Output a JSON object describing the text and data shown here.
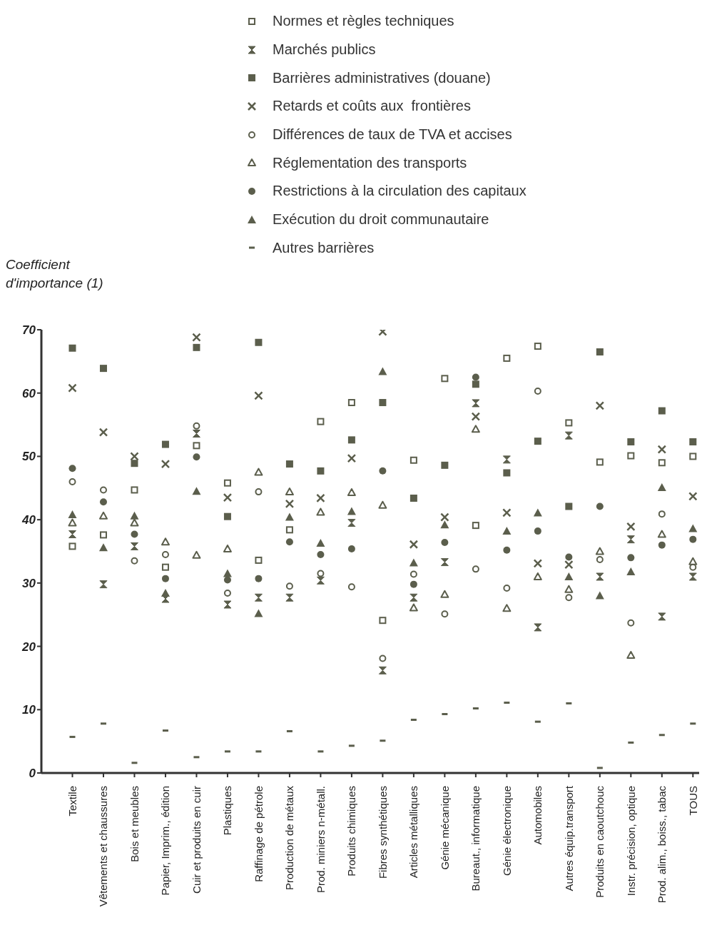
{
  "chart_data": {
    "type": "scatter",
    "ylabel": "Coefficient d'importance (1)",
    "categories": [
      "Textile",
      "Vêtements et chaussures",
      "Bois et meubles",
      "Papier, Imprim., édition",
      "Cuir et produits en cuir",
      "Plastiques",
      "Raffinage de pétrole",
      "Production de métaux",
      "Prod. miniers n-métall.",
      "Produits chimiques",
      "Fibres synthétiques",
      "Articles métalliques",
      "Génie mécanique",
      "Bureaut., informatique",
      "Génie électronique",
      "Automobiles",
      "Autres équip.transport",
      "Produits en caoutchouc",
      "Instr. précision, optique",
      "Prod. alim., boiss., tabac",
      "TOUS"
    ],
    "ylim": [
      0,
      70
    ],
    "yticks": [
      0,
      10,
      20,
      30,
      40,
      50,
      60,
      70
    ],
    "grid": false,
    "legend": "top",
    "series": [
      {
        "name": "Normes et règles techniques",
        "color": "#5b5e4c",
        "marker": "square-open",
        "values": [
          35.8,
          37.6,
          44.7,
          32.5,
          51.7,
          45.8,
          33.6,
          38.4,
          55.5,
          58.5,
          24.1,
          49.4,
          62.3,
          39.1,
          65.5,
          67.4,
          55.3,
          49.1,
          50.1,
          49.0,
          50.0
        ]
      },
      {
        "name": "Marchés publics",
        "color": "#5b5e4c",
        "marker": "diamond",
        "values": [
          37.7,
          29.8,
          35.8,
          27.5,
          53.6,
          26.6,
          27.7,
          27.7,
          30.4,
          39.5,
          16.2,
          27.7,
          33.3,
          58.4,
          49.5,
          23.0,
          53.3,
          31.0,
          36.9,
          24.7,
          31.0
        ]
      },
      {
        "name": "Barrières administratives (douane)",
        "color": "#5b5e4c",
        "marker": "square",
        "values": [
          67.1,
          63.9,
          48.9,
          51.9,
          67.2,
          40.5,
          68.0,
          48.8,
          47.7,
          52.6,
          58.5,
          43.4,
          48.6,
          61.4,
          47.4,
          52.4,
          42.1,
          66.5,
          52.3,
          57.2,
          52.3
        ]
      },
      {
        "name": "Retards et coûts aux  frontières",
        "color": "#5b5e4c",
        "marker": "cross",
        "values": [
          60.8,
          53.8,
          50.0,
          48.8,
          68.8,
          43.5,
          59.6,
          42.5,
          43.4,
          49.7,
          69.7,
          36.1,
          40.4,
          56.3,
          41.1,
          33.1,
          32.9,
          58.0,
          38.9,
          51.1,
          43.7
        ]
      },
      {
        "name": "Différences de taux de TVA et accises",
        "color": "#5b5e4c",
        "marker": "circle-open",
        "values": [
          46.0,
          44.7,
          33.5,
          34.5,
          54.8,
          28.4,
          44.4,
          29.5,
          31.5,
          29.4,
          18.1,
          31.4,
          25.1,
          32.2,
          29.2,
          60.3,
          27.7,
          33.7,
          23.7,
          40.9,
          32.5
        ]
      },
      {
        "name": "Réglementation des transports",
        "color": "#5b5e4c",
        "marker": "triangle-open",
        "values": [
          39.5,
          40.6,
          39.5,
          36.5,
          34.4,
          35.4,
          47.5,
          44.4,
          41.2,
          44.3,
          42.3,
          26.1,
          28.2,
          54.3,
          26.0,
          31.0,
          29.0,
          35.0,
          18.6,
          37.7,
          33.4
        ]
      },
      {
        "name": "Restrictions à la circulation des capitaux",
        "color": "#5b5e4c",
        "marker": "circle",
        "values": [
          48.1,
          42.8,
          37.7,
          30.7,
          49.9,
          30.5,
          30.7,
          36.5,
          34.5,
          35.4,
          47.7,
          29.8,
          36.4,
          62.5,
          35.2,
          38.2,
          34.1,
          42.1,
          34.0,
          36.0,
          36.9
        ]
      },
      {
        "name": "Exécution du droit communautaire",
        "color": "#5b5e4c",
        "marker": "triangle",
        "values": [
          40.8,
          35.6,
          40.6,
          28.4,
          44.5,
          31.5,
          25.2,
          40.4,
          36.3,
          41.3,
          63.4,
          33.2,
          39.2,
          null,
          38.2,
          41.1,
          31.0,
          28.0,
          31.8,
          45.1,
          38.6
        ]
      },
      {
        "name": "Autres barrières",
        "color": "#5b5e4c",
        "values": [
          5.7,
          7.8,
          1.6,
          6.7,
          2.5,
          3.4,
          3.4,
          6.6,
          3.4,
          4.3,
          5.1,
          8.4,
          9.3,
          10.2,
          11.1,
          8.1,
          11.0,
          0.8,
          4.8,
          6.0,
          7.8
        ]
      }
    ]
  }
}
